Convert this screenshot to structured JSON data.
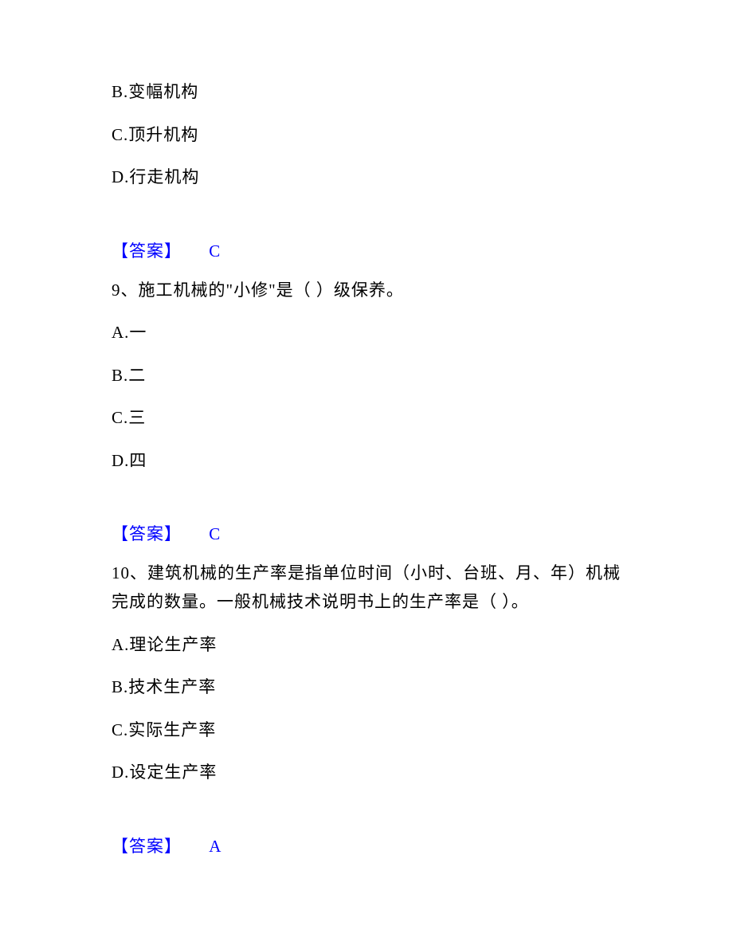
{
  "q8": {
    "options": {
      "b": "B.变幅机构",
      "c": "C.顶升机构",
      "d": "D.行走机构"
    },
    "answer_label": "【答案】",
    "answer_value": "C"
  },
  "q9": {
    "stem": "9、施工机械的\"小修\"是（  ）级保养。",
    "options": {
      "a": "A.一",
      "b": "B.二",
      "c": "C.三",
      "d": "D.四"
    },
    "answer_label": "【答案】",
    "answer_value": "C"
  },
  "q10": {
    "stem": "10、建筑机械的生产率是指单位时间（小时、台班、月、年）机械完成的数量。一般机械技术说明书上的生产率是（  ）。",
    "options": {
      "a": "A.理论生产率",
      "b": "B.技术生产率",
      "c": "C.实际生产率",
      "d": "D.设定生产率"
    },
    "answer_label": "【答案】",
    "answer_value": "A"
  },
  "colors": {
    "text": "#000000",
    "answer": "#0000ff",
    "background": "#ffffff"
  },
  "typography": {
    "font_family": "SimSun",
    "font_size_pt": 16,
    "line_height": 1.5
  }
}
